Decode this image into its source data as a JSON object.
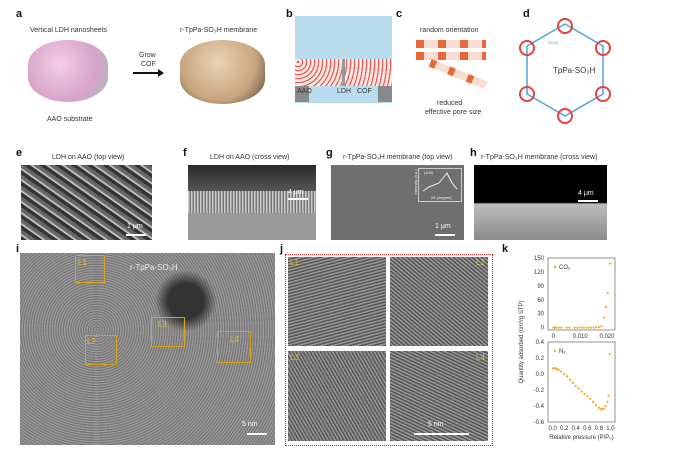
{
  "panels": {
    "a": {
      "label": "a",
      "title_left": "Vertical LDH nanosheets",
      "substrate": "AAO substrate",
      "arrow_text_1": "Grow",
      "arrow_text_2": "COF",
      "title_right": "r-TpPa-SO₃H membrane"
    },
    "b": {
      "label": "b",
      "aao": "AAO",
      "ldh": "LDH",
      "cof": "COF"
    },
    "c": {
      "label": "c",
      "title": "random orientation",
      "note_1": "reduced",
      "note_2": "effective pore size"
    },
    "d": {
      "label": "d",
      "name": "TpPa-SO₃H",
      "group": "SO₃H"
    },
    "e": {
      "label": "e",
      "title": "LDH on AAO (top view)",
      "scale": "1 μm"
    },
    "f": {
      "label": "f",
      "title": "LDH on AAO (cross view)",
      "scale": "4 μm"
    },
    "g": {
      "label": "g",
      "title": "r-TpPa-SO₃H membrane (top view)",
      "scale": "1 μm",
      "inset_peak": "(100)",
      "inset_ylabel": "Intensity (a.u.)",
      "inset_xlabel": "2θ (degree)",
      "inset_ticks": [
        "10",
        "20",
        "30"
      ]
    },
    "h": {
      "label": "h",
      "title": "r-TpPa-SO₃H membrane (cross view)",
      "scale": "4 μm"
    },
    "i": {
      "label": "i",
      "title": "r-TpPa-SO₃H",
      "scale": "5 nm",
      "boxes": [
        "L1",
        "L2",
        "L3",
        "L4"
      ]
    },
    "j": {
      "label": "j",
      "scale": "5 nm",
      "tiles": [
        "L1",
        "L2",
        "L3",
        "L4"
      ]
    },
    "k": {
      "label": "k"
    }
  },
  "chart_data": [
    {
      "type": "scatter",
      "series": [
        {
          "name": "CO₂",
          "color": "#f5a623",
          "x": [
            0,
            0.0003,
            0.0006,
            0.001,
            0.002,
            0.003,
            0.005,
            0.006,
            0.008,
            0.009,
            0.01,
            0.011,
            0.012,
            0.013,
            0.014,
            0.015,
            0.016,
            0.017,
            0.018,
            0.0189,
            0.0197,
            0.0203,
            0.0212
          ],
          "y": [
            0,
            0,
            0,
            0,
            0,
            0,
            0,
            0,
            0,
            0,
            0,
            0,
            0,
            0,
            0,
            0,
            1,
            1,
            3,
            22,
            45,
            75,
            138
          ]
        }
      ],
      "xticks": [
        "0",
        "0.010",
        "0.020"
      ],
      "xlim": [
        -0.002,
        0.023
      ],
      "yticks": [
        "0",
        "30",
        "60",
        "90",
        "120",
        "150"
      ],
      "ylim": [
        -5,
        150
      ],
      "ylabel": "Quantity adsorbed (cm³/g STP)",
      "legend": "top-left"
    },
    {
      "type": "scatter",
      "series": [
        {
          "name": "N₂",
          "color": "#f5a623",
          "x": [
            0.01,
            0.03,
            0.05,
            0.08,
            0.1,
            0.15,
            0.2,
            0.25,
            0.3,
            0.35,
            0.4,
            0.45,
            0.5,
            0.55,
            0.6,
            0.65,
            0.7,
            0.75,
            0.8,
            0.83,
            0.86,
            0.89,
            0.92,
            0.95,
            0.97,
            0.99
          ],
          "y": [
            0.07,
            0.07,
            0.07,
            0.06,
            0.05,
            0.03,
            0.0,
            -0.03,
            -0.07,
            -0.11,
            -0.15,
            -0.18,
            -0.22,
            -0.25,
            -0.28,
            -0.31,
            -0.35,
            -0.39,
            -0.42,
            -0.44,
            -0.44,
            -0.43,
            -0.4,
            -0.35,
            -0.27,
            0.25
          ]
        }
      ],
      "xticks": [
        "0.0",
        "0.2",
        "0.4",
        "0.6",
        "0.8",
        "1.0"
      ],
      "xlim": [
        -0.08,
        1.08
      ],
      "yticks": [
        "0.4",
        "0.2",
        "0.0",
        "-0.2",
        "-0.4",
        "-0.6"
      ],
      "ylim": [
        -0.6,
        0.4
      ],
      "xlabel": "Relative pressure (P/P₀)",
      "legend": "top-left"
    }
  ]
}
